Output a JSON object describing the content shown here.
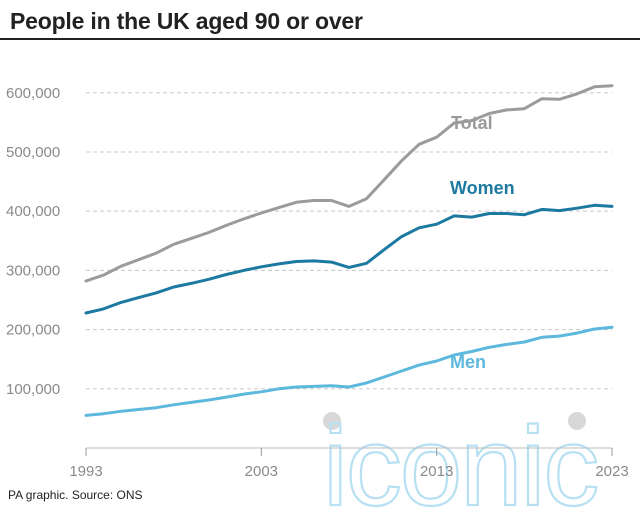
{
  "page_title": "People in the UK aged 90 or over",
  "source": "PA graphic. Source: ONS",
  "watermark": "iconic",
  "chart_data": {
    "type": "line",
    "title": "People in the UK aged 90 or over",
    "xlabel": "",
    "ylabel": "",
    "xlim": [
      1993,
      2023
    ],
    "ylim": [
      0,
      630000
    ],
    "x_ticks": [
      1993,
      2003,
      2013,
      2023
    ],
    "y_ticks": [
      100000,
      200000,
      300000,
      400000,
      500000,
      600000
    ],
    "y_tick_labels": [
      "100,000",
      "200,000",
      "300,000",
      "400,000",
      "500,000",
      "600,000"
    ],
    "x_tick_labels": [
      "1993",
      "2003",
      "2013",
      "2023"
    ],
    "grid": "horizontal dashed",
    "legend": "inline labels",
    "x": [
      1993,
      1994,
      1995,
      1996,
      1997,
      1998,
      1999,
      2000,
      2001,
      2002,
      2003,
      2004,
      2005,
      2006,
      2007,
      2008,
      2009,
      2010,
      2011,
      2012,
      2013,
      2014,
      2015,
      2016,
      2017,
      2018,
      2019,
      2020,
      2021,
      2022,
      2023
    ],
    "series": [
      {
        "name": "Total",
        "color": "#9b9b9b",
        "values": [
          282000,
          292000,
          307000,
          318000,
          329000,
          344000,
          354000,
          364000,
          376000,
          387000,
          397000,
          406000,
          415000,
          418000,
          418000,
          408000,
          421000,
          453000,
          485000,
          513000,
          525000,
          549000,
          553000,
          565000,
          571000,
          573000,
          590000,
          589000,
          598000,
          610000,
          612000
        ]
      },
      {
        "name": "Women",
        "color": "#1c7aa0",
        "values": [
          228000,
          235000,
          246000,
          254000,
          262000,
          272000,
          278000,
          285000,
          293000,
          300000,
          306000,
          311000,
          315000,
          316000,
          314000,
          305000,
          312000,
          335000,
          357000,
          372000,
          378000,
          392000,
          390000,
          396000,
          396000,
          394000,
          403000,
          401000,
          405000,
          410000,
          408000
        ]
      },
      {
        "name": "Men",
        "color": "#5cb8dc",
        "values": [
          55000,
          58000,
          62000,
          65000,
          68000,
          73000,
          77000,
          81000,
          86000,
          91000,
          95000,
          100000,
          103000,
          104000,
          105000,
          103000,
          110000,
          120000,
          130000,
          140000,
          147000,
          157000,
          163000,
          170000,
          175000,
          179000,
          187000,
          189000,
          194000,
          201000,
          204000
        ]
      }
    ]
  }
}
